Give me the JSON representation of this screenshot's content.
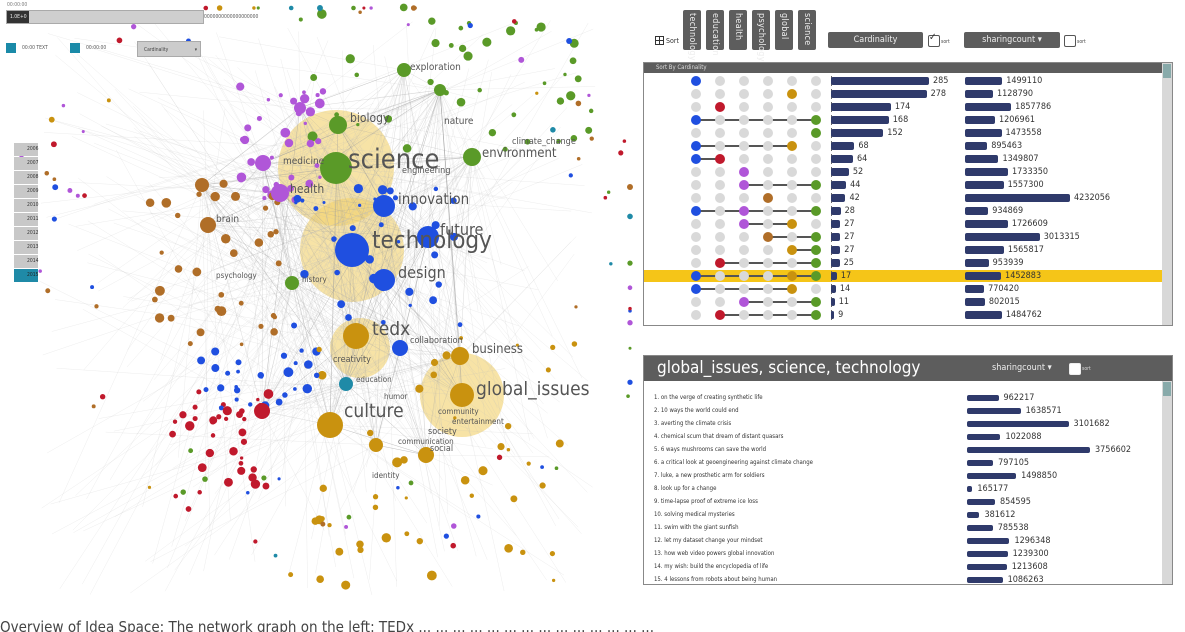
{
  "top": {
    "caption": "00:00:00",
    "bar_label": "1.0E+0",
    "bar_right_label": "0000000000000000000"
  },
  "legend": {
    "items": [
      "00:00 TEXT",
      "00:00:00"
    ],
    "select_label": "Cardinality"
  },
  "years": [
    "2006",
    "2007",
    "2008",
    "2009",
    "2010",
    "2011",
    "2012",
    "2013",
    "2014",
    "2015"
  ],
  "graph": {
    "colors": {
      "green": "#5a9a28",
      "purple": "#b056d8",
      "blue": "#1f4fe0",
      "orange": "#c9920f",
      "brown": "#b06e28",
      "red": "#c0192c",
      "teal": "#1f8aa7",
      "halo": "#f2d16a"
    },
    "big_labels": [
      {
        "text": "science"
      },
      {
        "text": "technology"
      },
      {
        "text": "design"
      },
      {
        "text": "innovation"
      },
      {
        "text": "future"
      },
      {
        "text": "tedx"
      },
      {
        "text": "culture"
      },
      {
        "text": "global_issues"
      },
      {
        "text": "business"
      },
      {
        "text": "environment"
      },
      {
        "text": "biology"
      },
      {
        "text": "health"
      },
      {
        "text": "brain"
      },
      {
        "text": "exploration"
      },
      {
        "text": "nature"
      },
      {
        "text": "medicine"
      },
      {
        "text": "engineering"
      },
      {
        "text": "psychology"
      },
      {
        "text": "creativity"
      },
      {
        "text": "education"
      },
      {
        "text": "collaboration"
      },
      {
        "text": "society"
      },
      {
        "text": "social"
      },
      {
        "text": "identity"
      },
      {
        "text": "history"
      },
      {
        "text": "climate_change"
      },
      {
        "text": "humor"
      },
      {
        "text": "communication"
      },
      {
        "text": "community"
      },
      {
        "text": "entertainment"
      }
    ]
  },
  "caption": "Overview of Idea Space: The network graph on the left: TEDx ... ... ... ... ... ... ... ... ... ... ... ... ... ...",
  "tags": [
    "technology",
    "education",
    "health",
    "psychology",
    "global",
    "science"
  ],
  "controls": {
    "sort_label": "Sort",
    "cardinality_button": "Cardinality",
    "sort_check_label": "sort",
    "sharing_select": "sharingcount",
    "sharing_check_label": "sort"
  },
  "panel1": {
    "header": "Sort By Cardinality",
    "rows": [
      {
        "card": 285,
        "share": 1499110,
        "dots": [
          "blue",
          "",
          "",
          "",
          "",
          ""
        ]
      },
      {
        "card": 278,
        "share": 1128790,
        "dots": [
          "",
          "",
          "",
          "",
          "orange",
          ""
        ]
      },
      {
        "card": 174,
        "share": 1857786,
        "dots": [
          "",
          "red",
          "",
          "",
          "",
          ""
        ]
      },
      {
        "card": 168,
        "share": 1206961,
        "dots": [
          "blue",
          "",
          "",
          "",
          "",
          "green"
        ]
      },
      {
        "card": 152,
        "share": 1473558,
        "dots": [
          "",
          "",
          "",
          "",
          "",
          "green"
        ]
      },
      {
        "card": 68,
        "share": 895463,
        "dots": [
          "blue",
          "",
          "",
          "",
          "orange",
          ""
        ]
      },
      {
        "card": 64,
        "share": 1349807,
        "dots": [
          "blue",
          "red",
          "",
          "",
          "",
          ""
        ]
      },
      {
        "card": 52,
        "share": 1733350,
        "dots": [
          "",
          "",
          "purple",
          "",
          "",
          ""
        ]
      },
      {
        "card": 44,
        "share": 1557300,
        "dots": [
          "",
          "",
          "purple",
          "",
          "",
          "green"
        ]
      },
      {
        "card": 42,
        "share": 4232056,
        "dots": [
          "",
          "",
          "",
          "brown",
          "",
          ""
        ]
      },
      {
        "card": 28,
        "share": 934869,
        "dots": [
          "blue",
          "",
          "purple",
          "",
          "",
          "green"
        ]
      },
      {
        "card": 27,
        "share": 1726609,
        "dots": [
          "",
          "",
          "purple",
          "",
          "orange",
          ""
        ]
      },
      {
        "card": 27,
        "share": 3013315,
        "dots": [
          "",
          "",
          "",
          "brown",
          "",
          "green"
        ]
      },
      {
        "card": 27,
        "share": 1565817,
        "dots": [
          "",
          "",
          "",
          "",
          "orange",
          "green"
        ]
      },
      {
        "card": 25,
        "share": 953939,
        "dots": [
          "",
          "red",
          "",
          "",
          "",
          "green"
        ]
      },
      {
        "card": 17,
        "share": 1452883,
        "dots": [
          "blue",
          "",
          "",
          "",
          "orange",
          "green"
        ],
        "hl": true
      },
      {
        "card": 14,
        "share": 770420,
        "dots": [
          "blue",
          "",
          "",
          "",
          "orange",
          ""
        ]
      },
      {
        "card": 11,
        "share": 802015,
        "dots": [
          "",
          "",
          "purple",
          "",
          "",
          "green"
        ]
      },
      {
        "card": 9,
        "share": 1484762,
        "dots": [
          "",
          "red",
          "",
          "",
          "",
          "green"
        ]
      }
    ]
  },
  "panel2": {
    "title": "global_issues, science, technology",
    "sort_select": "sharingcount",
    "sort_check_label": "sort",
    "rows": [
      {
        "title": "1. on the verge of creating synthetic life",
        "value": 962217
      },
      {
        "title": "2. 10 ways the world could end",
        "value": 1638571
      },
      {
        "title": "3. averting the climate crisis",
        "value": 3101682
      },
      {
        "title": "4. chemical scum that dream of distant quasars",
        "value": 1022088
      },
      {
        "title": "5. 6 ways mushrooms can save the world",
        "value": 3756602
      },
      {
        "title": "6. a critical look at geoengineering against climate change",
        "value": 797105
      },
      {
        "title": "7. luke, a new prosthetic arm for soldiers",
        "value": 1498850
      },
      {
        "title": "8. look up for a change",
        "value": 165177
      },
      {
        "title": "9. time-lapse proof of extreme ice loss",
        "value": 854595
      },
      {
        "title": "10. solving medical mysteries",
        "value": 381612
      },
      {
        "title": "11. swim with the giant sunfish",
        "value": 785538
      },
      {
        "title": "12. let my dataset change your mindset",
        "value": 1296348
      },
      {
        "title": "13. how web video powers global innovation",
        "value": 1239300
      },
      {
        "title": "14. my wish: build the encyclopedia of life",
        "value": 1213608
      },
      {
        "title": "15. 4 lessons from robots about being human",
        "value": 1086263
      }
    ]
  }
}
